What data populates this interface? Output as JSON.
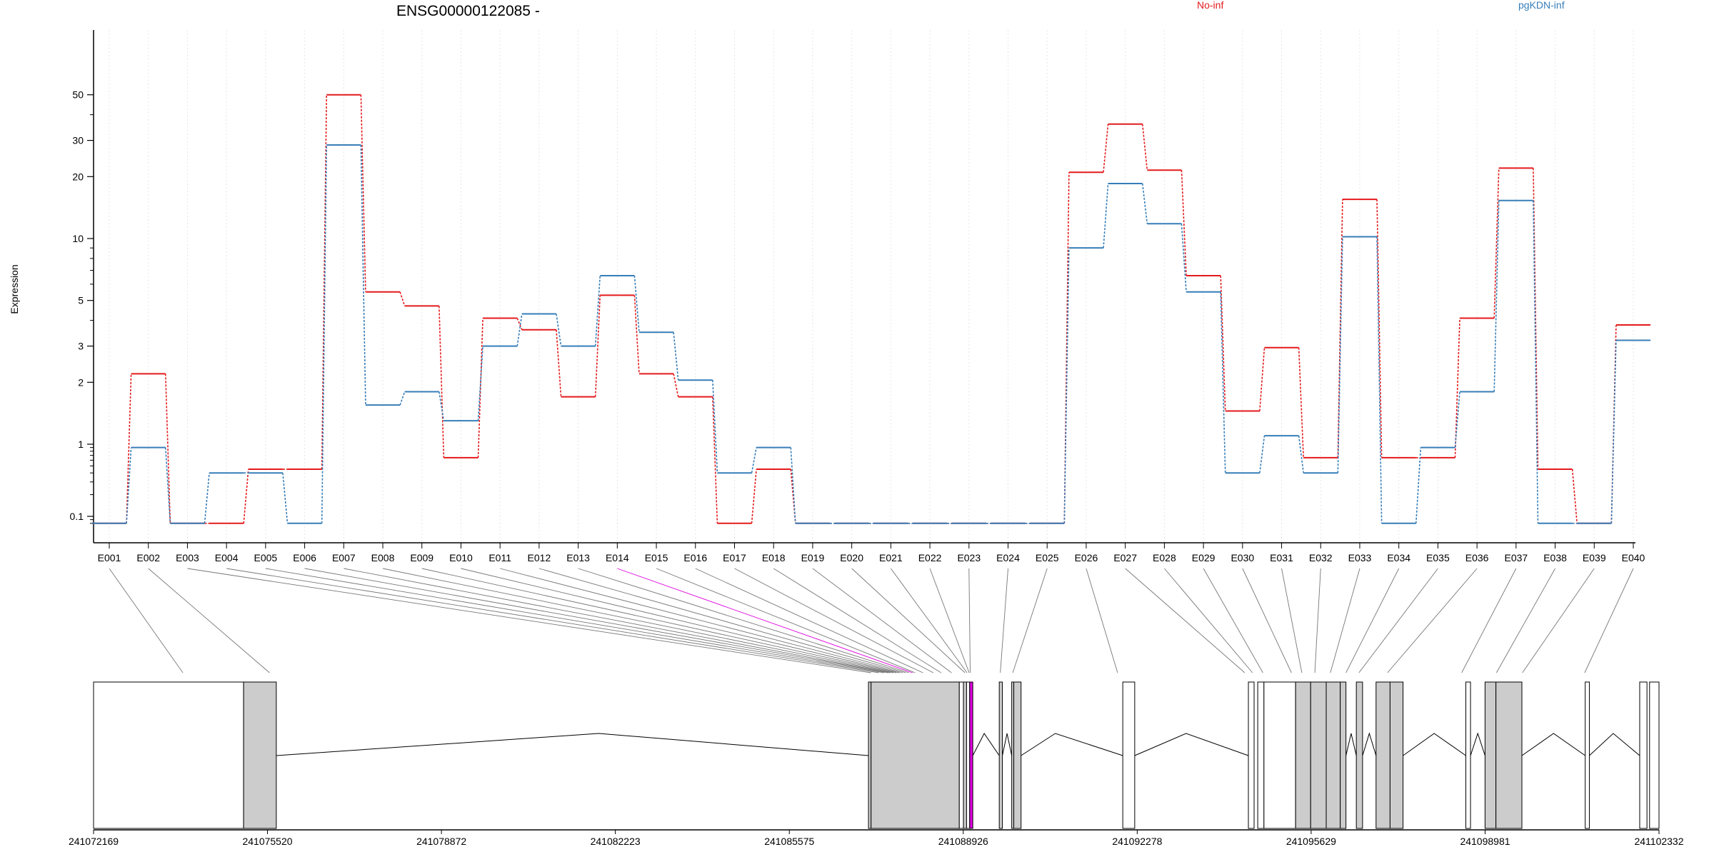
{
  "chart_data": {
    "type": "line",
    "title": "ENSG00000122085 -",
    "ylabel": "Expression",
    "xlabel": "",
    "y_scale": "log",
    "y_ticks": [
      0.1,
      1,
      2,
      3,
      5,
      10,
      20,
      30,
      50
    ],
    "y_tick_labels": [
      "0.1",
      "1",
      "2",
      "3",
      "5",
      "10",
      "20",
      "30",
      "50"
    ],
    "grid": "vertical dotted",
    "legend_placement": "top",
    "categories": [
      "E001",
      "E002",
      "E003",
      "E004",
      "E005",
      "E006",
      "E007",
      "E008",
      "E009",
      "E010",
      "E011",
      "E012",
      "E013",
      "E014",
      "E015",
      "E016",
      "E017",
      "E018",
      "E019",
      "E020",
      "E021",
      "E022",
      "E023",
      "E024",
      "E025",
      "E026",
      "E027",
      "E028",
      "E029",
      "E030",
      "E031",
      "E032",
      "E033",
      "E034",
      "E035",
      "E036",
      "E037",
      "E038",
      "E039",
      "E040"
    ],
    "series": [
      {
        "name": "No-inf",
        "color": "#e41a1c",
        "values": [
          0.08,
          2.2,
          0.08,
          0.08,
          0.45,
          0.45,
          50,
          5.5,
          4.7,
          0.65,
          4.1,
          3.6,
          1.7,
          5.3,
          2.2,
          1.7,
          0.08,
          0.45,
          0.08,
          0.08,
          0.08,
          0.08,
          0.08,
          0.08,
          0.08,
          21,
          36,
          21.5,
          6.6,
          1.45,
          2.95,
          0.65,
          15.5,
          0.65,
          0.65,
          4.1,
          22,
          0.45,
          0.08,
          3.8
        ]
      },
      {
        "name": "pgKDN-inf",
        "color": "#377eb8",
        "values": [
          0.08,
          0.9,
          0.08,
          0.4,
          0.4,
          0.08,
          28.5,
          1.55,
          1.8,
          1.3,
          3.0,
          4.3,
          3.0,
          6.6,
          3.5,
          2.05,
          0.4,
          0.9,
          0.08,
          0.08,
          0.08,
          0.08,
          0.08,
          0.08,
          0.08,
          9.0,
          18.5,
          11.8,
          5.5,
          0.4,
          1.1,
          0.4,
          10.2,
          0.08,
          0.9,
          1.8,
          15.3,
          0.08,
          0.08,
          3.2
        ]
      }
    ],
    "genome_axis": {
      "start": 241072169,
      "end": 241102332,
      "tick_values": [
        241072169,
        241075520,
        241078872,
        241082223,
        241085575,
        241088926,
        241092278,
        241095629,
        241098981,
        241102332
      ],
      "tick_labels": [
        "241072169",
        "241075520",
        "241078872",
        "241082223",
        "241085575",
        "241088926",
        "241092278",
        "241095629",
        "241098981",
        "241102332"
      ]
    },
    "exons": [
      {
        "start": 241072169,
        "end": 241075060,
        "filled": false
      },
      {
        "start": 241075060,
        "end": 241075690,
        "filled": true
      },
      {
        "start": 241087100,
        "end": 241087150,
        "filled": true
      },
      {
        "start": 241087150,
        "end": 241088850,
        "filled": true
      },
      {
        "start": 241088850,
        "end": 241088930,
        "filled": false
      },
      {
        "start": 241088930,
        "end": 241088990,
        "filled": true
      },
      {
        "start": 241088990,
        "end": 241089050,
        "filled": false
      },
      {
        "start": 241089050,
        "end": 241089110,
        "filled": "highlight"
      },
      {
        "start": 241089620,
        "end": 241089680,
        "filled": true
      },
      {
        "start": 241089860,
        "end": 241089900,
        "filled": true
      },
      {
        "start": 241089900,
        "end": 241090040,
        "filled": true
      },
      {
        "start": 241092000,
        "end": 241092230,
        "filled": false
      },
      {
        "start": 241094420,
        "end": 241094530,
        "filled": false
      },
      {
        "start": 241094600,
        "end": 241094720,
        "filled": false
      },
      {
        "start": 241094720,
        "end": 241095330,
        "filled": false
      },
      {
        "start": 241095330,
        "end": 241095620,
        "filled": true
      },
      {
        "start": 241095620,
        "end": 241095920,
        "filled": true
      },
      {
        "start": 241095920,
        "end": 241096190,
        "filled": true
      },
      {
        "start": 241096190,
        "end": 241096300,
        "filled": true
      },
      {
        "start": 241096500,
        "end": 241096620,
        "filled": true
      },
      {
        "start": 241096880,
        "end": 241097150,
        "filled": true
      },
      {
        "start": 241097150,
        "end": 241097400,
        "filled": true
      },
      {
        "start": 241098610,
        "end": 241098700,
        "filled": false
      },
      {
        "start": 241098980,
        "end": 241099190,
        "filled": true
      },
      {
        "start": 241099190,
        "end": 241099690,
        "filled": true
      },
      {
        "start": 241100910,
        "end": 241100990,
        "filled": false
      },
      {
        "start": 241101960,
        "end": 241102100,
        "filled": false
      },
      {
        "start": 241102150,
        "end": 241102332,
        "filled": false
      }
    ],
    "introns": [
      {
        "start": 241075690,
        "end": 241087100,
        "peak": 241081900
      },
      {
        "start": 241089110,
        "end": 241089620,
        "peak": 241089330
      },
      {
        "start": 241089680,
        "end": 241089860,
        "peak": 241089770
      },
      {
        "start": 241090040,
        "end": 241092000,
        "peak": 241090700
      },
      {
        "start": 241092230,
        "end": 241094420,
        "peak": 241093220
      },
      {
        "start": 241096300,
        "end": 241096500,
        "peak": 241096400
      },
      {
        "start": 241096620,
        "end": 241096880,
        "peak": 241096750
      },
      {
        "start": 241097400,
        "end": 241098610,
        "peak": 241098000
      },
      {
        "start": 241098700,
        "end": 241098980,
        "peak": 241098840
      },
      {
        "start": 241099690,
        "end": 241100910,
        "peak": 241100300
      },
      {
        "start": 241100990,
        "end": 241101960,
        "peak": 241101450
      }
    ],
    "exon_map": [
      241073890,
      241075560,
      241087150,
      241087300,
      241087400,
      241087480,
      241087520,
      241087580,
      241087640,
      241087700,
      241087760,
      241087820,
      241087880,
      241087950,
      241088000,
      241088150,
      241088350,
      241088500,
      241088700,
      241088960,
      241089000,
      241089040,
      241089060,
      241089640,
      241089880,
      241091900,
      241094350,
      241094500,
      241094700,
      241095250,
      241095450,
      241095700,
      241096000,
      241096300,
      241096550,
      241097100,
      241098530,
      241099200,
      241099700,
      241100900,
      241102050,
      241102200
    ],
    "exon_map_ends": [
      241073890,
      241075560,
      241087150,
      241087300,
      241087400,
      241087480,
      241087520,
      241087580,
      241087640,
      241087700,
      241087760,
      241087820,
      241087880,
      241087950,
      241088000,
      241088150,
      241088350,
      241088500,
      241088700,
      241088960,
      241089000,
      241089040,
      241089060,
      241089640,
      241089880,
      241091900,
      241094350,
      241094500,
      241094700,
      241095250,
      241095450,
      241095700,
      241096000,
      241096300,
      241096550,
      241097100,
      241098530,
      241099200,
      241099700,
      241100900,
      241102050,
      241102200
    ],
    "highlighted_exon": "E014",
    "highlight_color": "#dd00dd"
  }
}
